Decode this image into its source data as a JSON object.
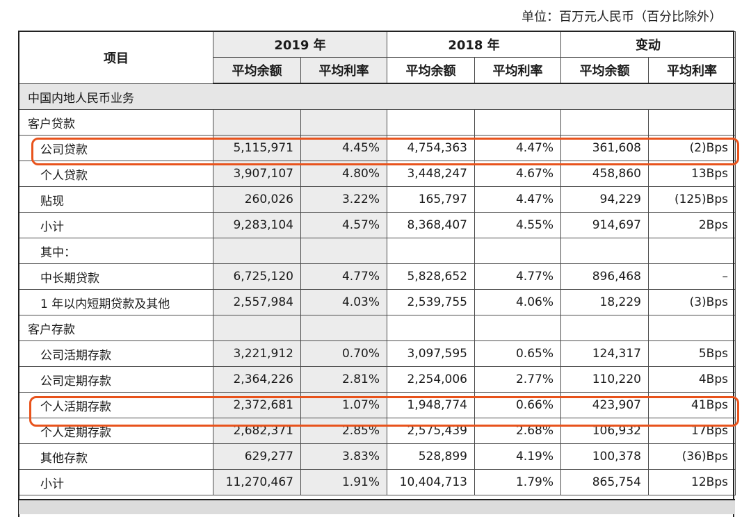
{
  "unit_note": "单位：百万元人民币（百分比除外）",
  "header": {
    "item": "项目",
    "year2019": "2019 年",
    "year2018": "2018 年",
    "change": "变动",
    "sub": [
      "平均余额",
      "平均利率",
      "平均余额",
      "平均利率",
      "平均余额",
      "平均利率"
    ]
  },
  "rows": [
    {
      "type": "section",
      "label": "中国内地人民币业务"
    },
    {
      "type": "group",
      "label": "客户贷款"
    },
    {
      "type": "data",
      "label": "公司贷款",
      "v": [
        "5,115,971",
        "4.45%",
        "4,754,363",
        "4.47%",
        "361,608",
        "(2)Bps"
      ]
    },
    {
      "type": "data",
      "label": "个人贷款",
      "v": [
        "3,907,107",
        "4.80%",
        "3,448,247",
        "4.67%",
        "458,860",
        "13Bps"
      ]
    },
    {
      "type": "data",
      "label": "贴现",
      "v": [
        "260,026",
        "3.22%",
        "165,797",
        "4.47%",
        "94,229",
        "(125)Bps"
      ]
    },
    {
      "type": "subtotal",
      "label": "小计",
      "v": [
        "9,283,104",
        "4.57%",
        "8,368,407",
        "4.55%",
        "914,697",
        "2Bps"
      ]
    },
    {
      "type": "note",
      "label": "其中：",
      "v": [
        "",
        "",
        "",
        "",
        "",
        ""
      ]
    },
    {
      "type": "data",
      "label": "中长期贷款",
      "v": [
        "6,725,120",
        "4.77%",
        "5,828,652",
        "4.77%",
        "896,468",
        "–"
      ]
    },
    {
      "type": "data",
      "label": "1 年以内短期贷款及其他",
      "v": [
        "2,557,984",
        "4.03%",
        "2,539,755",
        "4.06%",
        "18,229",
        "(3)Bps"
      ]
    },
    {
      "type": "group",
      "label": "客户存款"
    },
    {
      "type": "data",
      "label": "公司活期存款",
      "v": [
        "3,221,912",
        "0.70%",
        "3,097,595",
        "0.65%",
        "124,317",
        "5Bps"
      ]
    },
    {
      "type": "data",
      "label": "公司定期存款",
      "v": [
        "2,364,226",
        "2.81%",
        "2,254,006",
        "2.77%",
        "110,220",
        "4Bps"
      ]
    },
    {
      "type": "data",
      "label": "个人活期存款",
      "v": [
        "2,372,681",
        "1.07%",
        "1,948,774",
        "0.66%",
        "423,907",
        "41Bps"
      ]
    },
    {
      "type": "data",
      "label": "个人定期存款",
      "v": [
        "2,682,371",
        "2.85%",
        "2,575,439",
        "2.68%",
        "106,932",
        "17Bps"
      ]
    },
    {
      "type": "data",
      "label": "其他存款",
      "v": [
        "629,277",
        "3.83%",
        "528,899",
        "4.19%",
        "100,378",
        "(36)Bps"
      ]
    },
    {
      "type": "subtotal",
      "label": "小计",
      "v": [
        "11,270,467",
        "1.91%",
        "10,404,713",
        "1.79%",
        "865,754",
        "12Bps"
      ]
    }
  ],
  "highlight_color": "#e8531c"
}
